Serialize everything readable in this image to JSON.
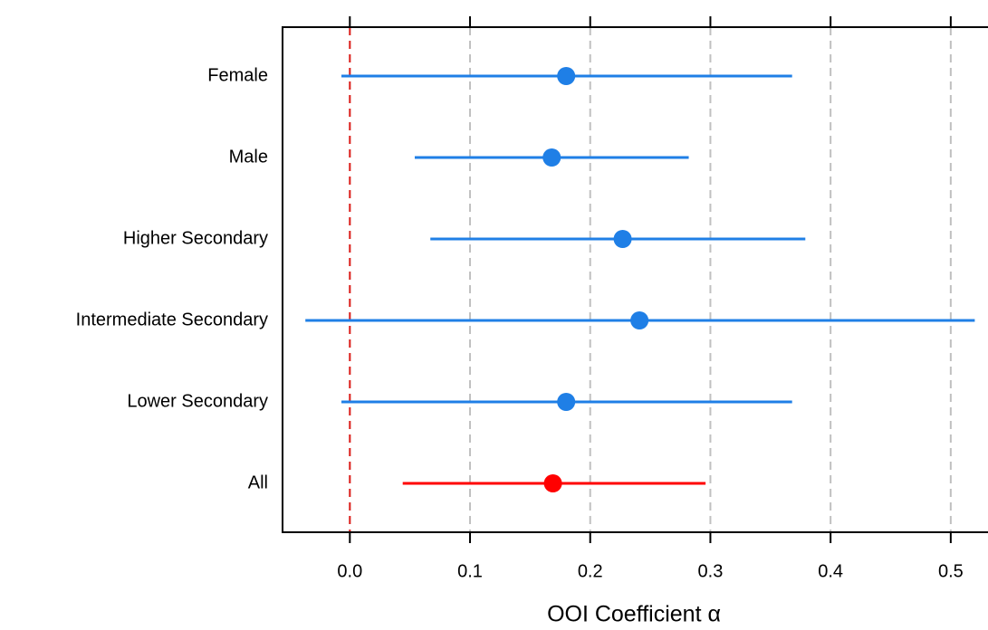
{
  "chart_data": {
    "type": "forest",
    "xlabel": "OOI Coefficient α",
    "categories": [
      "Female",
      "Male",
      "Higher Secondary",
      "Intermediate Secondary",
      "Lower Secondary",
      "All"
    ],
    "values": [
      0.18,
      0.168,
      0.227,
      0.241,
      0.18,
      0.169
    ],
    "lower": [
      -0.007,
      0.054,
      0.067,
      -0.037,
      -0.007,
      0.044
    ],
    "upper": [
      0.368,
      0.282,
      0.379,
      0.52,
      0.368,
      0.296
    ],
    "colors": [
      "#1f7fe6",
      "#1f7fe6",
      "#1f7fe6",
      "#1f7fe6",
      "#1f7fe6",
      "#ff0000"
    ],
    "xlim": [
      -0.056,
      0.531
    ],
    "xticks": [
      {
        "value": 0,
        "label": "0.0"
      },
      0.1,
      0.2,
      0.3,
      0.4,
      0.5
    ],
    "reference_line": 0,
    "reference_color": "#e0201b",
    "grid": true
  }
}
